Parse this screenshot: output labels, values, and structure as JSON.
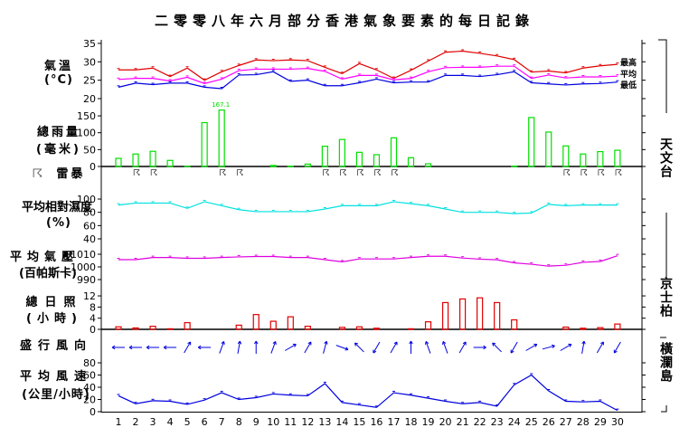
{
  "title": "二零零八年六月部分香港氣象要素的每日記錄",
  "panels": {
    "temperature": {
      "label": "氣溫",
      "unit": "(°C)",
      "legend": [
        "最高",
        "平均",
        "最低"
      ]
    },
    "rainfall": {
      "label": "總雨量",
      "unit": "(毫米)",
      "peak_label": "167.1"
    },
    "thunderstorm": {
      "label": "雷暴",
      "icon": "thunderstorm-icon"
    },
    "humidity": {
      "label": "平均相對濕度",
      "unit": "(%)"
    },
    "pressure": {
      "label": "平均氣壓",
      "unit": "(百帕斯卡)"
    },
    "sunshine": {
      "label": "總日照",
      "unit": "(小時)"
    },
    "wind_direction": {
      "label": "盛行風向"
    },
    "wind_speed": {
      "label": "平均風速",
      "unit": "(公里/小時)"
    }
  },
  "stations": {
    "observatory": "天文台",
    "kings_park": "京士柏",
    "waglan": "橫瀾島"
  },
  "colors": {
    "max_temp": "#e00000",
    "mean_temp": "#ff00ff",
    "min_temp": "#0000e0",
    "rain": "#00e000",
    "humidity": "#00e0e0",
    "pressure": "#e000e0",
    "sunshine": "#e00000",
    "wind": "#0000e0"
  },
  "chart_data": [
    {
      "type": "line",
      "title": "氣溫 (°C)",
      "x": [
        1,
        2,
        3,
        4,
        5,
        6,
        7,
        8,
        9,
        10,
        11,
        12,
        13,
        14,
        15,
        16,
        17,
        18,
        19,
        20,
        21,
        22,
        23,
        24,
        25,
        26,
        27,
        28,
        29,
        30
      ],
      "ylim": [
        20,
        35
      ],
      "yticks": [
        20,
        25,
        30,
        35
      ],
      "series": [
        {
          "name": "最高",
          "values": [
            27.8,
            27.8,
            28.3,
            26.0,
            28.3,
            25.0,
            27.3,
            29.0,
            30.5,
            30.3,
            30.5,
            30.3,
            28.5,
            26.8,
            29.5,
            27.8,
            25.5,
            27.7,
            30.2,
            32.6,
            32.9,
            32.3,
            31.6,
            30.6,
            27.2,
            27.5,
            27.0,
            28.3,
            28.9,
            29.3
          ]
        },
        {
          "name": "平均",
          "values": [
            25.2,
            25.5,
            25.5,
            24.8,
            25.8,
            24.1,
            25.3,
            27.6,
            28.0,
            28.0,
            28.0,
            28.2,
            27.4,
            25.3,
            26.3,
            26.3,
            25.1,
            25.5,
            27.3,
            28.4,
            28.5,
            28.5,
            28.8,
            28.8,
            25.5,
            26.4,
            25.6,
            25.9,
            25.9,
            26.1
          ]
        },
        {
          "name": "最低",
          "values": [
            23.1,
            24.2,
            23.8,
            24.2,
            24.2,
            23.1,
            22.7,
            26.4,
            26.5,
            27.3,
            24.7,
            25.0,
            23.5,
            23.5,
            24.3,
            25.3,
            24.3,
            24.5,
            24.5,
            26.3,
            26.3,
            26.0,
            26.5,
            27.3,
            24.3,
            24.0,
            23.7,
            24.0,
            24.1,
            24.5
          ]
        }
      ]
    },
    {
      "type": "bar",
      "title": "總雨量 (毫米)",
      "categories": [
        1,
        2,
        3,
        4,
        5,
        6,
        7,
        8,
        9,
        10,
        11,
        12,
        13,
        14,
        15,
        16,
        17,
        18,
        19,
        20,
        21,
        22,
        23,
        24,
        25,
        26,
        27,
        28,
        29,
        30
      ],
      "values": [
        24,
        37,
        45,
        18,
        0.5,
        130,
        167.1,
        0,
        0,
        3,
        1,
        7,
        60,
        80,
        42,
        35,
        85,
        26,
        8,
        0,
        0,
        0,
        0,
        1,
        145,
        102,
        61,
        37,
        44,
        48
      ],
      "annotation": {
        "day": 7,
        "text": "167.1"
      },
      "ylim": [
        0,
        150
      ],
      "yticks": [
        0,
        50,
        100,
        150
      ]
    },
    {
      "type": "table",
      "title": "雷暴",
      "thunderstorm_days": [
        2,
        3,
        7,
        8,
        13,
        14,
        15,
        16,
        17,
        27,
        28,
        29,
        30
      ]
    },
    {
      "type": "line",
      "title": "平均相對濕度 (%)",
      "x": [
        1,
        2,
        3,
        4,
        5,
        6,
        7,
        8,
        9,
        10,
        11,
        12,
        13,
        14,
        15,
        16,
        17,
        18,
        19,
        20,
        21,
        22,
        23,
        24,
        25,
        26,
        27,
        28,
        29,
        30
      ],
      "values": [
        91,
        94,
        94,
        94,
        86,
        96,
        90,
        84,
        81,
        81,
        81,
        81,
        85,
        90,
        90,
        90,
        96,
        93,
        90,
        85,
        80,
        80,
        80,
        78,
        79,
        92,
        90,
        91,
        91,
        91
      ],
      "ylim": [
        40,
        100
      ],
      "yticks": [
        40,
        60,
        80,
        100
      ]
    },
    {
      "type": "line",
      "title": "平均氣壓 (百帕斯卡)",
      "x": [
        1,
        2,
        3,
        4,
        5,
        6,
        7,
        8,
        9,
        10,
        11,
        12,
        13,
        14,
        15,
        16,
        17,
        18,
        19,
        20,
        21,
        22,
        23,
        24,
        25,
        26,
        27,
        28,
        29,
        30
      ],
      "values": [
        1005.7,
        1005.7,
        1007.4,
        1007.4,
        1006.8,
        1006.8,
        1007.4,
        1007.9,
        1008.2,
        1008.2,
        1007.4,
        1007.4,
        1005.7,
        1004.0,
        1006.3,
        1006.3,
        1006.3,
        1007.4,
        1008.4,
        1008.4,
        1007.0,
        1006.1,
        1005.6,
        1003.2,
        1002.1,
        1000.6,
        1001.3,
        1003.6,
        1004.3,
        1008.8
      ],
      "ylim": [
        990,
        1010
      ],
      "yticks": [
        990,
        1000,
        1010
      ]
    },
    {
      "type": "bar",
      "title": "總日照 (小時)",
      "categories": [
        1,
        2,
        3,
        4,
        5,
        6,
        7,
        8,
        9,
        10,
        11,
        12,
        13,
        14,
        15,
        16,
        17,
        18,
        19,
        20,
        21,
        22,
        23,
        24,
        25,
        26,
        27,
        28,
        29,
        30
      ],
      "values": [
        0.9,
        0.5,
        1.1,
        0.2,
        2.4,
        0,
        0,
        1.5,
        5.3,
        2.9,
        4.5,
        1.1,
        0,
        0.7,
        0.9,
        0.4,
        0,
        0.2,
        2.7,
        9.6,
        10.9,
        11.3,
        9.6,
        3.4,
        0,
        0,
        0.8,
        0.4,
        0.6,
        1.9
      ],
      "ylim": [
        0,
        14
      ],
      "yticks": [
        0,
        4,
        8,
        12
      ]
    },
    {
      "type": "table",
      "title": "盛行風向",
      "days": [
        1,
        2,
        3,
        4,
        5,
        6,
        7,
        8,
        9,
        10,
        11,
        12,
        13,
        14,
        15,
        16,
        17,
        18,
        19,
        20,
        21,
        22,
        23,
        24,
        25,
        26,
        27,
        28,
        29,
        30
      ],
      "direction_deg_to": [
        270,
        270,
        270,
        270,
        30,
        270,
        20,
        10,
        0,
        20,
        60,
        30,
        15,
        110,
        315,
        210,
        30,
        0,
        340,
        340,
        30,
        90,
        315,
        210,
        60,
        75,
        60,
        10,
        30,
        210
      ]
    },
    {
      "type": "line",
      "title": "平均風速 (公里/小時)",
      "x": [
        1,
        2,
        3,
        4,
        5,
        6,
        7,
        8,
        9,
        10,
        11,
        12,
        13,
        14,
        15,
        16,
        17,
        18,
        19,
        20,
        21,
        22,
        23,
        24,
        25,
        26,
        27,
        28,
        29,
        30
      ],
      "values": [
        26,
        13,
        18,
        17,
        12,
        19,
        31,
        20,
        23,
        29,
        27,
        26,
        46,
        15,
        11,
        7,
        31,
        27,
        22,
        17,
        13,
        15,
        9,
        44,
        60,
        34,
        17,
        16,
        17,
        2
      ],
      "ylim": [
        0,
        80
      ],
      "yticks": [
        0,
        20,
        40,
        60,
        80
      ],
      "xlabel_ticks": [
        1,
        2,
        3,
        4,
        5,
        6,
        7,
        8,
        9,
        10,
        11,
        12,
        13,
        14,
        15,
        16,
        17,
        18,
        19,
        20,
        21,
        22,
        23,
        24,
        25,
        26,
        27,
        28,
        29,
        30
      ]
    }
  ]
}
